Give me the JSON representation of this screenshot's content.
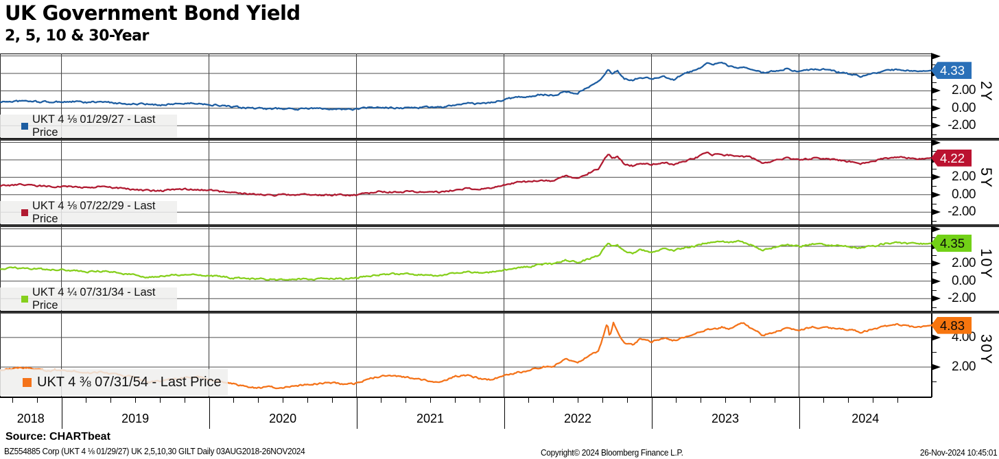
{
  "title": "UK Government Bond Yield",
  "subtitle": "2, 5, 10 & 30-Year",
  "footer": {
    "source_label": "Source: CHARTbeat",
    "left_fine_print": "BZ554885 Corp (UKT 4 ⅛  01/29/27) UK 2,5,10,30 GILT   Daily 03AUG2018-26NOV2024",
    "copyright": "Copyright© 2024 Bloomberg Finance L.P.",
    "timestamp": "26-Nov-2024 10:45:01"
  },
  "x_axis": {
    "years": [
      "2018",
      "2019",
      "2020",
      "2021",
      "2022",
      "2023",
      "2024"
    ],
    "year_start_months": [
      5,
      17,
      29,
      41,
      53,
      65
    ],
    "total_months": 75.8
  },
  "chart_data": [
    {
      "type": "line",
      "panel_label": "2Y",
      "legend": "UKT 4 ⅛  01/29/27 - Last Price",
      "last_price": "4.33",
      "color": "#1d5da1",
      "badge_color": "#2a70b8",
      "badge_text_color": "#ffffff",
      "last_value": 4.33,
      "ylim": [
        -3.4,
        6.28
      ],
      "gridlines": [
        6,
        4,
        2,
        0,
        -2
      ],
      "minor_ticks": [
        5,
        3,
        1,
        -1,
        -3
      ],
      "ytick_labels": [
        {
          "v": 2,
          "t": "2.00"
        },
        {
          "v": 0,
          "t": "0.00"
        },
        {
          "v": -2,
          "t": "-2.00"
        }
      ],
      "points": [
        [
          0,
          0.72
        ],
        [
          1,
          0.8
        ],
        [
          2,
          0.82
        ],
        [
          3,
          0.76
        ],
        [
          4,
          0.72
        ],
        [
          5,
          0.74
        ],
        [
          6,
          0.76
        ],
        [
          7,
          0.65
        ],
        [
          8,
          0.74
        ],
        [
          9,
          0.63
        ],
        [
          10,
          0.56
        ],
        [
          11,
          0.48
        ],
        [
          12,
          0.44
        ],
        [
          13,
          0.38
        ],
        [
          14,
          0.52
        ],
        [
          15,
          0.56
        ],
        [
          16,
          0.55
        ],
        [
          17,
          0.46
        ],
        [
          18,
          0.32
        ],
        [
          19,
          0.12
        ],
        [
          20,
          0.04
        ],
        [
          21,
          -0.03
        ],
        [
          22,
          -0.07
        ],
        [
          23,
          -0.04
        ],
        [
          24,
          -0.1
        ],
        [
          25,
          -0.04
        ],
        [
          26,
          -0.02
        ],
        [
          27,
          -0.02
        ],
        [
          28,
          -0.13
        ],
        [
          29,
          -0.1
        ],
        [
          30,
          0.04
        ],
        [
          31,
          0.09
        ],
        [
          32,
          0.04
        ],
        [
          33,
          0.06
        ],
        [
          34,
          0.07
        ],
        [
          35,
          0.11
        ],
        [
          36,
          0.16
        ],
        [
          37,
          0.3
        ],
        [
          38,
          0.56
        ],
        [
          39,
          0.48
        ],
        [
          40,
          0.68
        ],
        [
          41,
          0.95
        ],
        [
          42,
          1.28
        ],
        [
          43,
          1.38
        ],
        [
          44,
          1.58
        ],
        [
          45,
          1.48
        ],
        [
          46,
          1.92
        ],
        [
          47,
          1.78
        ],
        [
          48,
          2.55
        ],
        [
          48.7,
          3.05
        ],
        [
          49.5,
          4.55
        ],
        [
          49.8,
          4.05
        ],
        [
          50.2,
          4.35
        ],
        [
          50.8,
          3.35
        ],
        [
          51.5,
          3.2
        ],
        [
          52,
          3.55
        ],
        [
          53,
          3.45
        ],
        [
          54,
          3.68
        ],
        [
          54.8,
          3.3
        ],
        [
          55.5,
          3.82
        ],
        [
          56.5,
          4.35
        ],
        [
          57.5,
          5.1
        ],
        [
          58,
          4.95
        ],
        [
          58.7,
          5.25
        ],
        [
          59.3,
          4.85
        ],
        [
          60,
          4.72
        ],
        [
          61,
          4.6
        ],
        [
          62,
          4.05
        ],
        [
          63,
          4.25
        ],
        [
          64,
          4.58
        ],
        [
          65,
          4.2
        ],
        [
          66,
          4.45
        ],
        [
          67,
          4.42
        ],
        [
          68,
          4.18
        ],
        [
          69,
          3.95
        ],
        [
          70,
          3.68
        ],
        [
          71,
          4.0
        ],
        [
          72,
          4.28
        ],
        [
          73,
          4.45
        ],
        [
          74,
          4.3
        ],
        [
          75,
          4.28
        ],
        [
          75.8,
          4.33
        ]
      ]
    },
    {
      "type": "line",
      "panel_label": "5Y",
      "legend": "UKT 4 ⅛  07/22/29 - Last Price",
      "last_price": "4.22",
      "color": "#b01a31",
      "badge_color": "#bb1230",
      "badge_text_color": "#ffffff",
      "last_value": 4.22,
      "ylim": [
        -3.4,
        6.28
      ],
      "gridlines": [
        6,
        4,
        2,
        0,
        -2
      ],
      "minor_ticks": [
        5,
        3,
        1,
        -1,
        -3
      ],
      "ytick_labels": [
        {
          "v": 2,
          "t": "2.00"
        },
        {
          "v": 0,
          "t": "0.00"
        },
        {
          "v": -2,
          "t": "-2.00"
        }
      ],
      "points": [
        [
          0,
          1.02
        ],
        [
          1,
          1.1
        ],
        [
          2,
          1.14
        ],
        [
          3,
          1.04
        ],
        [
          4,
          0.94
        ],
        [
          5,
          0.98
        ],
        [
          6,
          0.94
        ],
        [
          7,
          0.83
        ],
        [
          8,
          0.92
        ],
        [
          9,
          0.8
        ],
        [
          10,
          0.68
        ],
        [
          11,
          0.58
        ],
        [
          12,
          0.45
        ],
        [
          13,
          0.42
        ],
        [
          14,
          0.58
        ],
        [
          15,
          0.62
        ],
        [
          16,
          0.64
        ],
        [
          17,
          0.54
        ],
        [
          18,
          0.36
        ],
        [
          19,
          0.16
        ],
        [
          20,
          0.12
        ],
        [
          21,
          0.02
        ],
        [
          22,
          -0.02
        ],
        [
          23,
          -0.01
        ],
        [
          24,
          -0.08
        ],
        [
          25,
          -0.02
        ],
        [
          26,
          -0.04
        ],
        [
          27,
          0.0
        ],
        [
          28,
          -0.06
        ],
        [
          29,
          -0.01
        ],
        [
          30,
          0.16
        ],
        [
          31,
          0.38
        ],
        [
          32,
          0.32
        ],
        [
          33,
          0.35
        ],
        [
          34,
          0.33
        ],
        [
          35,
          0.29
        ],
        [
          36,
          0.33
        ],
        [
          37,
          0.58
        ],
        [
          38,
          0.78
        ],
        [
          39,
          0.64
        ],
        [
          40,
          0.84
        ],
        [
          41,
          1.08
        ],
        [
          42,
          1.38
        ],
        [
          43,
          1.48
        ],
        [
          44,
          1.62
        ],
        [
          45,
          1.58
        ],
        [
          46,
          2.08
        ],
        [
          47,
          1.88
        ],
        [
          48,
          2.58
        ],
        [
          48.7,
          3.0
        ],
        [
          49.5,
          4.65
        ],
        [
          49.8,
          4.15
        ],
        [
          50.2,
          4.4
        ],
        [
          50.8,
          3.55
        ],
        [
          51.5,
          3.32
        ],
        [
          52,
          3.62
        ],
        [
          53,
          3.48
        ],
        [
          54,
          3.72
        ],
        [
          54.8,
          3.42
        ],
        [
          55.5,
          3.8
        ],
        [
          56.5,
          4.18
        ],
        [
          57.5,
          4.78
        ],
        [
          58,
          4.55
        ],
        [
          58.7,
          4.68
        ],
        [
          59.3,
          4.48
        ],
        [
          60,
          4.52
        ],
        [
          61,
          4.28
        ],
        [
          62,
          3.68
        ],
        [
          63,
          3.88
        ],
        [
          64,
          4.18
        ],
        [
          65,
          3.92
        ],
        [
          66,
          4.18
        ],
        [
          67,
          4.12
        ],
        [
          68,
          3.98
        ],
        [
          69,
          3.82
        ],
        [
          70,
          3.58
        ],
        [
          71,
          3.82
        ],
        [
          72,
          4.12
        ],
        [
          73,
          4.3
        ],
        [
          74,
          4.18
        ],
        [
          75,
          4.16
        ],
        [
          75.8,
          4.22
        ]
      ]
    },
    {
      "type": "line",
      "panel_label": "10Y",
      "legend": "UKT 4 ¼  07/31/34 - Last Price",
      "last_price": "4.35",
      "color": "#86cf1d",
      "badge_color": "#72d117",
      "badge_text_color": "#0a0a0a",
      "last_value": 4.35,
      "ylim": [
        -3.4,
        6.28
      ],
      "gridlines": [
        6,
        4,
        2,
        0,
        -2
      ],
      "minor_ticks": [
        5,
        3,
        1,
        -1,
        -3
      ],
      "ytick_labels": [
        {
          "v": 2,
          "t": "2.00"
        },
        {
          "v": 0,
          "t": "0.00"
        },
        {
          "v": -2,
          "t": "-2.00"
        }
      ],
      "points": [
        [
          0,
          1.38
        ],
        [
          1,
          1.5
        ],
        [
          2,
          1.52
        ],
        [
          3,
          1.42
        ],
        [
          4,
          1.28
        ],
        [
          5,
          1.3
        ],
        [
          6,
          1.24
        ],
        [
          7,
          1.06
        ],
        [
          8,
          1.16
        ],
        [
          9,
          1.04
        ],
        [
          10,
          0.86
        ],
        [
          11,
          0.76
        ],
        [
          12,
          0.5
        ],
        [
          13,
          0.56
        ],
        [
          14,
          0.72
        ],
        [
          15,
          0.76
        ],
        [
          16,
          0.84
        ],
        [
          17,
          0.62
        ],
        [
          18,
          0.5
        ],
        [
          19,
          0.36
        ],
        [
          20,
          0.32
        ],
        [
          21,
          0.22
        ],
        [
          22,
          0.2
        ],
        [
          23,
          0.14
        ],
        [
          24,
          0.26
        ],
        [
          25,
          0.22
        ],
        [
          26,
          0.26
        ],
        [
          27,
          0.34
        ],
        [
          28,
          0.24
        ],
        [
          29,
          0.32
        ],
        [
          30,
          0.58
        ],
        [
          31,
          0.82
        ],
        [
          32,
          0.82
        ],
        [
          33,
          0.84
        ],
        [
          34,
          0.77
        ],
        [
          35,
          0.62
        ],
        [
          36,
          0.68
        ],
        [
          37,
          0.98
        ],
        [
          38,
          1.08
        ],
        [
          39,
          0.98
        ],
        [
          40,
          1.02
        ],
        [
          41,
          1.28
        ],
        [
          42,
          1.52
        ],
        [
          43,
          1.68
        ],
        [
          44,
          1.92
        ],
        [
          45,
          1.98
        ],
        [
          46,
          2.38
        ],
        [
          47,
          2.12
        ],
        [
          48,
          2.62
        ],
        [
          48.7,
          2.95
        ],
        [
          49.5,
          4.45
        ],
        [
          49.8,
          4.0
        ],
        [
          50.2,
          4.2
        ],
        [
          50.8,
          3.4
        ],
        [
          51.5,
          3.18
        ],
        [
          52,
          3.68
        ],
        [
          53,
          3.38
        ],
        [
          54,
          3.72
        ],
        [
          54.8,
          3.52
        ],
        [
          55.5,
          3.78
        ],
        [
          56.5,
          4.02
        ],
        [
          57.5,
          4.42
        ],
        [
          58,
          4.46
        ],
        [
          58.7,
          4.58
        ],
        [
          59.3,
          4.38
        ],
        [
          60,
          4.62
        ],
        [
          61,
          4.22
        ],
        [
          62,
          3.58
        ],
        [
          63,
          3.82
        ],
        [
          64,
          4.12
        ],
        [
          65,
          3.98
        ],
        [
          66,
          4.28
        ],
        [
          67,
          4.18
        ],
        [
          68,
          4.12
        ],
        [
          69,
          3.98
        ],
        [
          70,
          3.82
        ],
        [
          71,
          4.02
        ],
        [
          72,
          4.32
        ],
        [
          73,
          4.45
        ],
        [
          74,
          4.28
        ],
        [
          75,
          4.28
        ],
        [
          75.8,
          4.35
        ]
      ]
    },
    {
      "type": "line",
      "panel_label": "30Y",
      "legend": "UKT 4 ⅜  07/31/54 - Last Price",
      "last_price": "4.83",
      "color": "#f4731a",
      "badge_color": "#f7750e",
      "badge_text_color": "#0a0a0a",
      "last_value": 4.83,
      "ylim": [
        0,
        5.67
      ],
      "gridlines": [
        4,
        2
      ],
      "minor_ticks": [
        5,
        3,
        1
      ],
      "ytick_labels": [
        {
          "v": 4,
          "t": "4.00"
        },
        {
          "v": 2,
          "t": "2.00"
        }
      ],
      "points": [
        [
          0,
          1.75
        ],
        [
          1,
          1.87
        ],
        [
          2,
          1.92
        ],
        [
          3,
          1.84
        ],
        [
          4,
          1.74
        ],
        [
          5,
          1.8
        ],
        [
          6,
          1.74
        ],
        [
          7,
          1.57
        ],
        [
          8,
          1.67
        ],
        [
          9,
          1.54
        ],
        [
          10,
          1.42
        ],
        [
          11,
          1.32
        ],
        [
          12,
          1.0
        ],
        [
          13,
          1.04
        ],
        [
          14,
          1.17
        ],
        [
          15,
          1.27
        ],
        [
          16,
          1.35
        ],
        [
          17,
          1.14
        ],
        [
          18,
          1.04
        ],
        [
          19,
          0.84
        ],
        [
          20,
          0.67
        ],
        [
          21,
          0.6
        ],
        [
          22,
          0.64
        ],
        [
          23,
          0.6
        ],
        [
          24,
          0.74
        ],
        [
          25,
          0.8
        ],
        [
          26,
          0.87
        ],
        [
          27,
          0.94
        ],
        [
          28,
          0.8
        ],
        [
          29,
          0.9
        ],
        [
          30,
          1.17
        ],
        [
          31,
          1.4
        ],
        [
          32,
          1.34
        ],
        [
          33,
          1.32
        ],
        [
          34,
          1.24
        ],
        [
          35,
          1.02
        ],
        [
          36,
          1.07
        ],
        [
          37,
          1.37
        ],
        [
          38,
          1.44
        ],
        [
          39,
          1.24
        ],
        [
          40,
          1.14
        ],
        [
          41,
          1.44
        ],
        [
          42,
          1.62
        ],
        [
          43,
          1.77
        ],
        [
          44,
          2.02
        ],
        [
          45,
          2.07
        ],
        [
          46,
          2.52
        ],
        [
          47,
          2.32
        ],
        [
          48,
          2.82
        ],
        [
          48.7,
          3.1
        ],
        [
          49.4,
          4.95
        ],
        [
          49.6,
          3.95
        ],
        [
          49.9,
          5.05
        ],
        [
          50.3,
          4.35
        ],
        [
          50.8,
          3.62
        ],
        [
          51.5,
          3.48
        ],
        [
          52,
          3.88
        ],
        [
          53,
          3.72
        ],
        [
          54,
          3.97
        ],
        [
          54.8,
          3.82
        ],
        [
          55.5,
          3.97
        ],
        [
          56.5,
          4.27
        ],
        [
          57.5,
          4.57
        ],
        [
          58,
          4.52
        ],
        [
          58.7,
          4.72
        ],
        [
          59.3,
          4.6
        ],
        [
          60,
          4.82
        ],
        [
          60.5,
          5.02
        ],
        [
          61,
          4.67
        ],
        [
          62,
          4.17
        ],
        [
          63,
          4.37
        ],
        [
          64,
          4.62
        ],
        [
          65,
          4.47
        ],
        [
          66,
          4.72
        ],
        [
          67,
          4.67
        ],
        [
          68,
          4.62
        ],
        [
          69,
          4.52
        ],
        [
          70,
          4.37
        ],
        [
          71,
          4.57
        ],
        [
          72,
          4.77
        ],
        [
          73,
          4.88
        ],
        [
          74,
          4.72
        ],
        [
          75,
          4.74
        ],
        [
          75.8,
          4.83
        ]
      ]
    }
  ]
}
